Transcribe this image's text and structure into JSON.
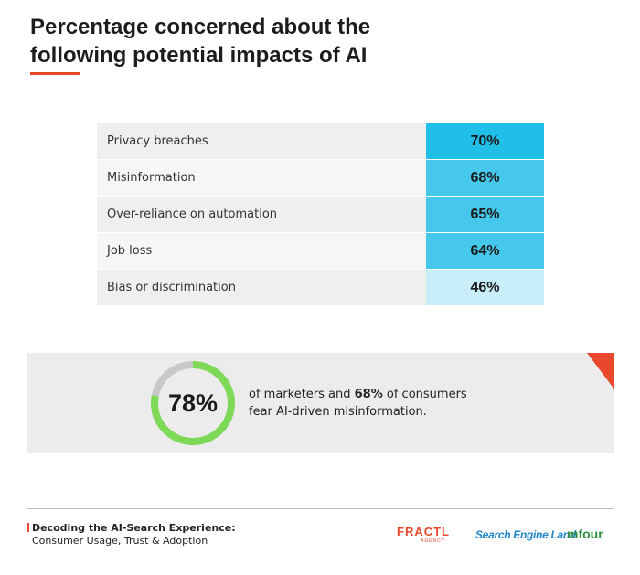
{
  "title": "Percentage concerned about the following potential impacts of AI",
  "title_lines": [
    "Percentage concerned about the",
    "following potential impacts of AI"
  ],
  "colors": {
    "accent": "#e8482c",
    "bar_strong": "#21bee8",
    "bar_mid": "#45c8ec",
    "bar_light": "#c9eef9",
    "donut_fill": "#7ed957",
    "donut_track": "#c8c8c8"
  },
  "chart_data": {
    "type": "table",
    "categories": [
      "Privacy breaches",
      "Misinformation",
      "Over-reliance on automation",
      "Job loss",
      "Bias or discrimination"
    ],
    "values": [
      70,
      68,
      65,
      64,
      46
    ],
    "labels": [
      "70%",
      "68%",
      "65%",
      "64%",
      "46%"
    ],
    "unit": "%"
  },
  "callout": {
    "donut_value": 78,
    "donut_label": "78%",
    "text_line1_pre": "of marketers and ",
    "text_line1_bold": "68%",
    "text_line1_post": " of consumers",
    "text_line2": "fear AI-driven misinformation."
  },
  "footer": {
    "title_line1": "Decoding the AI-Search Experience:",
    "title_line2": "Consumer Usage, Trust & Adoption",
    "logos": {
      "fractl": "FRACTL",
      "fractl_sub": "AGENCY",
      "sel": "Search Engine Land",
      "mfour": "mfour"
    }
  }
}
